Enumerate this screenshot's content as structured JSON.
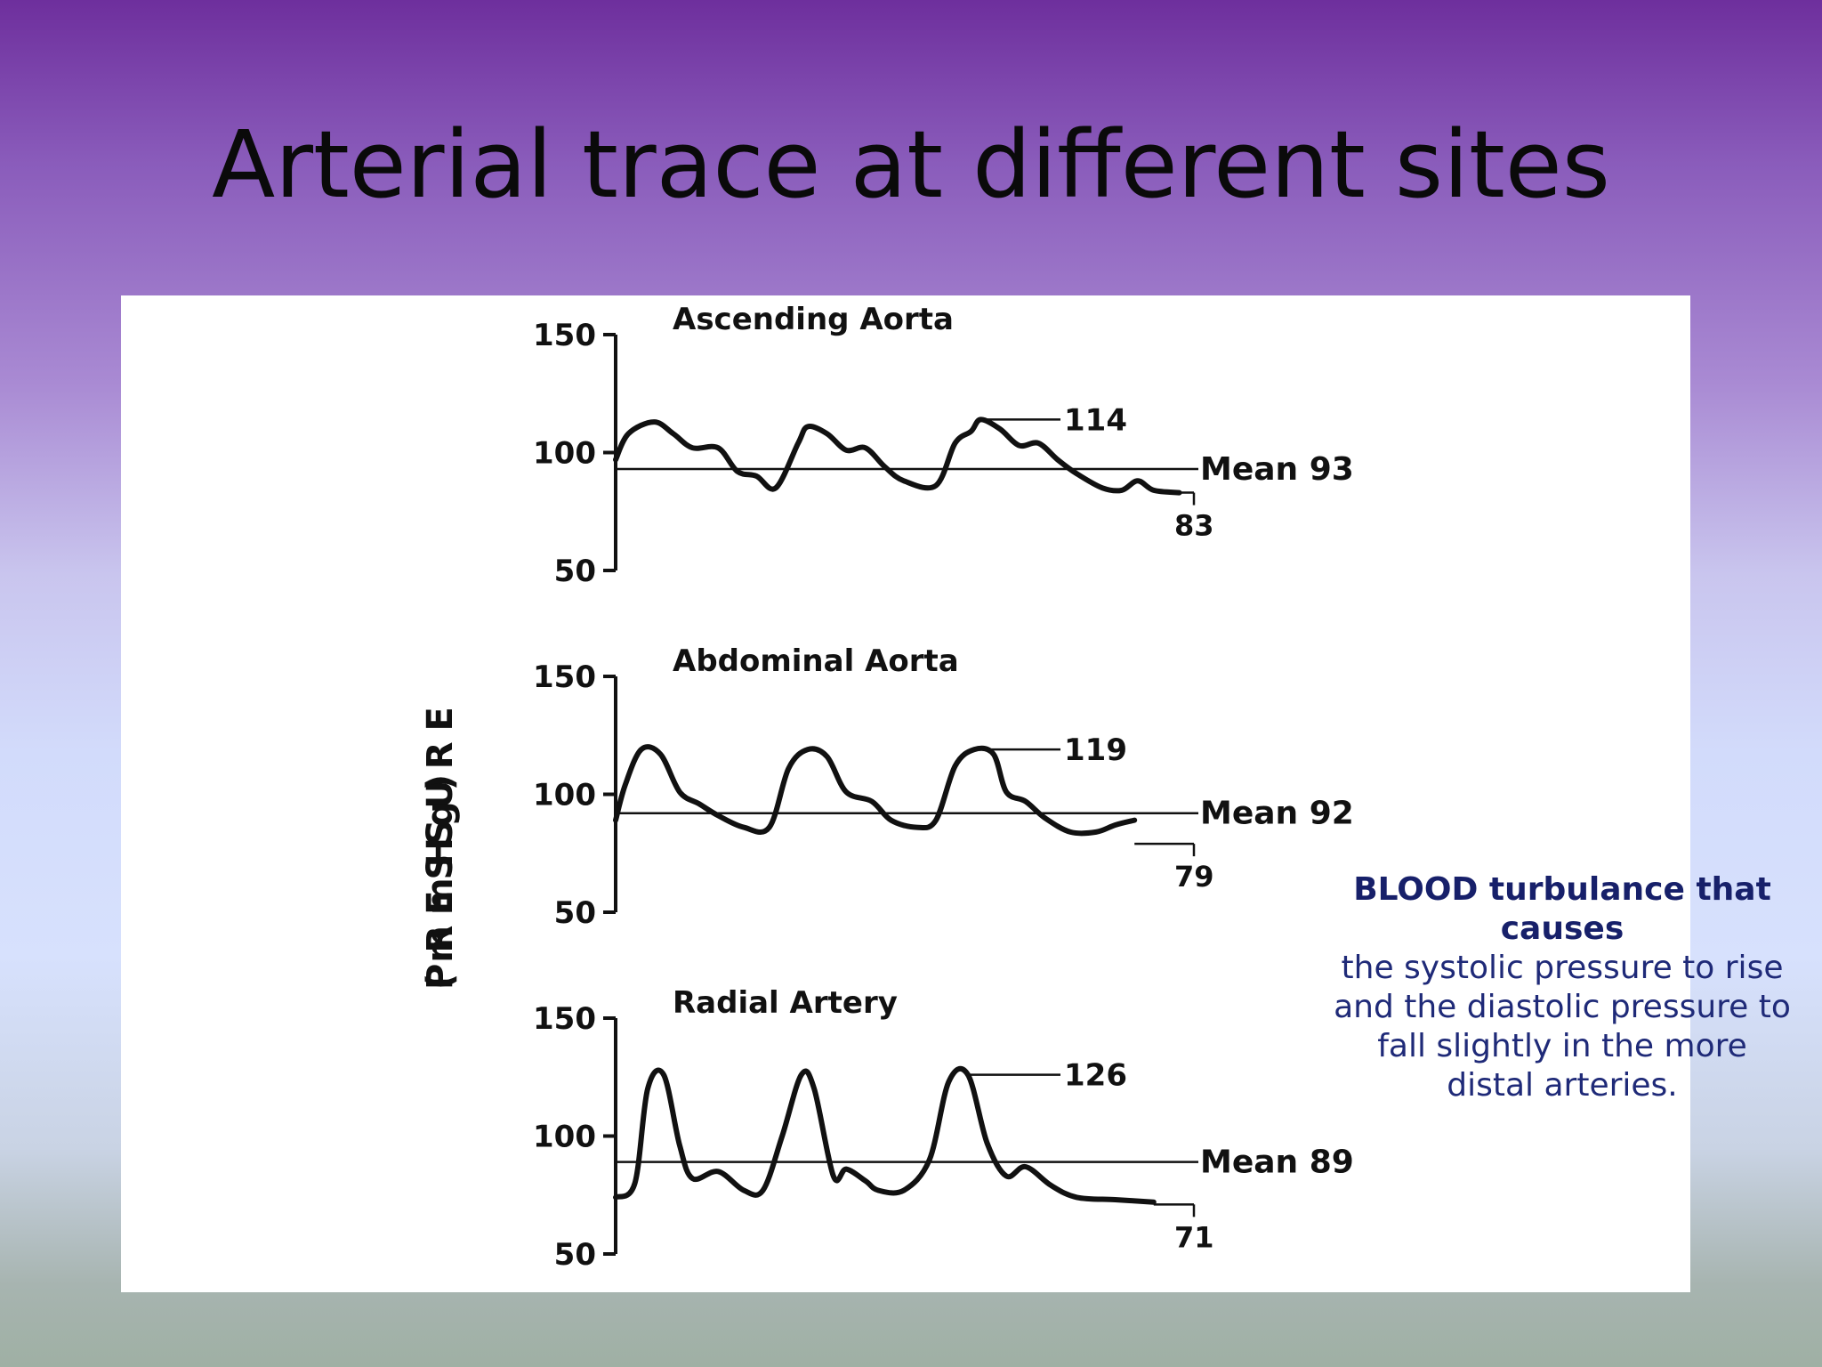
{
  "slide": {
    "title": "Arterial trace at different sites",
    "note_bold": "BLOOD turbulance that causes",
    "note_text": "the systolic pressure to rise and the diastolic pressure to fall slightly in the more distal arteries."
  },
  "chart_data": {
    "type": "line",
    "ylabel": "PRESSURE (mmHg)",
    "ylabel_main": "PRESSURE",
    "ylabel_unit": "(mmHg)",
    "panels": [
      {
        "title": "Ascending Aorta",
        "ylim": [
          50,
          150
        ],
        "yticks": [
          "150",
          "100",
          "50"
        ],
        "systolic_label": "114",
        "systolic": 114,
        "mean_label": "Mean 93",
        "mean": 93,
        "diastolic_label": "83",
        "diastolic": 83,
        "x": [
          0,
          0.02,
          0.06,
          0.09,
          0.12,
          0.16,
          0.19,
          0.22,
          0.25,
          0.285,
          0.3,
          0.33,
          0.36,
          0.39,
          0.42,
          0.45,
          0.5,
          0.53,
          0.555,
          0.57,
          0.6,
          0.63,
          0.66,
          0.69,
          0.72,
          0.76,
          0.79,
          0.815,
          0.84,
          0.88
        ],
        "y": [
          97,
          108,
          113,
          108,
          102,
          102,
          92,
          90,
          85,
          104,
          111,
          108,
          101,
          102,
          94,
          88,
          86,
          104,
          109,
          114,
          110,
          103,
          104,
          97,
          91,
          85,
          84,
          88,
          84,
          83
        ]
      },
      {
        "title": "Abdominal Aorta",
        "ylim": [
          50,
          150
        ],
        "yticks": [
          "150",
          "100",
          "50"
        ],
        "systolic_label": "119",
        "systolic": 119,
        "mean_label": "Mean 92",
        "mean": 92,
        "diastolic_label": "79",
        "diastolic": 79,
        "x": [
          0,
          0.015,
          0.04,
          0.07,
          0.1,
          0.13,
          0.16,
          0.2,
          0.24,
          0.27,
          0.3,
          0.33,
          0.36,
          0.4,
          0.43,
          0.47,
          0.5,
          0.53,
          0.56,
          0.59,
          0.61,
          0.64,
          0.67,
          0.71,
          0.75,
          0.78,
          0.81
        ],
        "y": [
          89,
          104,
          119,
          117,
          101,
          96,
          91,
          86,
          86,
          111,
          119,
          116,
          101,
          97,
          89,
          86,
          89,
          112,
          119,
          117,
          101,
          97,
          90,
          84,
          84,
          87,
          89
        ]
      },
      {
        "title": "Radial Artery",
        "ylim": [
          50,
          150
        ],
        "yticks": [
          "150",
          "100",
          "50"
        ],
        "systolic_label": "126",
        "systolic": 126,
        "mean_label": "Mean 89",
        "mean": 89,
        "diastolic_label": "71",
        "diastolic": 71,
        "x": [
          0,
          0.03,
          0.05,
          0.075,
          0.1,
          0.12,
          0.16,
          0.2,
          0.23,
          0.26,
          0.29,
          0.31,
          0.34,
          0.36,
          0.39,
          0.41,
          0.45,
          0.49,
          0.52,
          0.55,
          0.58,
          0.61,
          0.64,
          0.68,
          0.72,
          0.78,
          0.84
        ],
        "y": [
          74,
          80,
          120,
          126,
          96,
          82,
          85,
          77,
          77,
          100,
          126,
          120,
          83,
          86,
          81,
          77,
          77,
          90,
          123,
          126,
          97,
          83,
          87,
          79,
          74,
          73,
          72
        ]
      }
    ]
  }
}
